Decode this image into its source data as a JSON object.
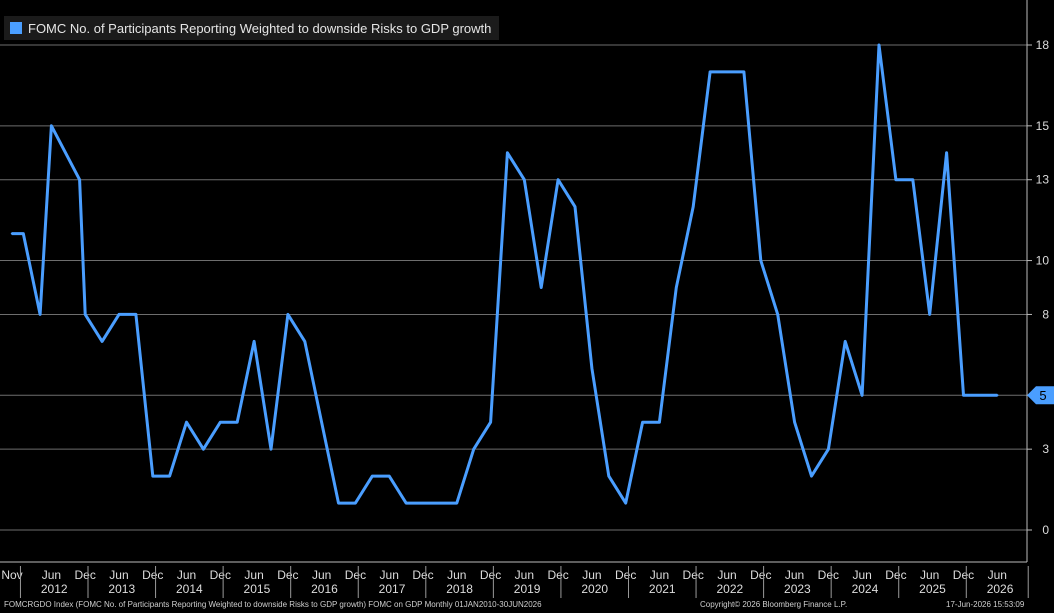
{
  "legend": {
    "label": "FOMC No. of Participants Reporting Weighted to downside Risks to GDP growth",
    "color": "#4a9eff"
  },
  "footer": {
    "source": "FOMCRGDO Index (FOMC No. of Participants Reporting Weighted to downside Risks to GDP growth) FOMC on GDP Monthly 01JAN2010-30JUN2026",
    "copyright": "Copyright© 2026 Bloomberg Finance L.P.",
    "timestamp": "17-Jun-2026 15:53:09"
  },
  "chart_data": {
    "type": "line",
    "x": [
      "2011-11",
      "2012-01",
      "2012-04",
      "2012-06",
      "2012-11",
      "2012-12",
      "2013-03",
      "2013-06",
      "2013-09",
      "2013-12",
      "2014-03",
      "2014-06",
      "2014-09",
      "2014-12",
      "2015-03",
      "2015-06",
      "2015-09",
      "2015-12",
      "2016-03",
      "2016-06",
      "2016-09",
      "2016-12",
      "2017-03",
      "2017-06",
      "2017-09",
      "2017-12",
      "2018-03",
      "2018-06",
      "2018-09",
      "2018-12",
      "2019-03",
      "2019-06",
      "2019-09",
      "2019-12",
      "2020-03",
      "2020-06",
      "2020-09",
      "2020-12",
      "2021-03",
      "2021-06",
      "2021-09",
      "2021-12",
      "2022-03",
      "2022-06",
      "2022-09",
      "2022-12",
      "2023-03",
      "2023-06",
      "2023-09",
      "2023-12",
      "2024-03",
      "2024-06",
      "2024-09",
      "2024-12",
      "2025-03",
      "2025-06",
      "2025-09",
      "2025-12",
      "2026-03",
      "2026-06"
    ],
    "series": [
      {
        "values": [
          11,
          11,
          8,
          15,
          13,
          8,
          7,
          8,
          8,
          2,
          2,
          4,
          3,
          4,
          4,
          7,
          3,
          8,
          7,
          4,
          1,
          1,
          2,
          2,
          1,
          1,
          1,
          1,
          3,
          4,
          14,
          13,
          9,
          13,
          12,
          6,
          2,
          1,
          4,
          4,
          9,
          12,
          17,
          17,
          17,
          10,
          8,
          4,
          2,
          3,
          7,
          5,
          18,
          13,
          13,
          8,
          14,
          5,
          5,
          5
        ]
      }
    ],
    "y_ticks": [
      0,
      3,
      5,
      8,
      10,
      13,
      15,
      18
    ],
    "ylim": [
      -0.5,
      19.3
    ],
    "last_value_label": "5",
    "x_tick_labels": [
      "Nov",
      "Jun",
      "Dec",
      "Jun",
      "Dec",
      "Jun",
      "Dec",
      "Jun",
      "Dec",
      "Jun",
      "Dec",
      "Jun",
      "Dec",
      "Jun",
      "Dec",
      "Jun",
      "Dec",
      "Jun",
      "Dec",
      "Jun",
      "Dec",
      "Jun",
      "Dec",
      "Jun",
      "Dec",
      "Jun",
      "Dec",
      "Jun",
      "Dec",
      "Jun"
    ],
    "x_year_labels": [
      "2012",
      "2013",
      "2014",
      "2015",
      "2016",
      "2017",
      "2018",
      "2019",
      "2020",
      "2021",
      "2022",
      "2023",
      "2024",
      "2025",
      "2026"
    ],
    "grid": true,
    "legend_position": "top-left"
  }
}
